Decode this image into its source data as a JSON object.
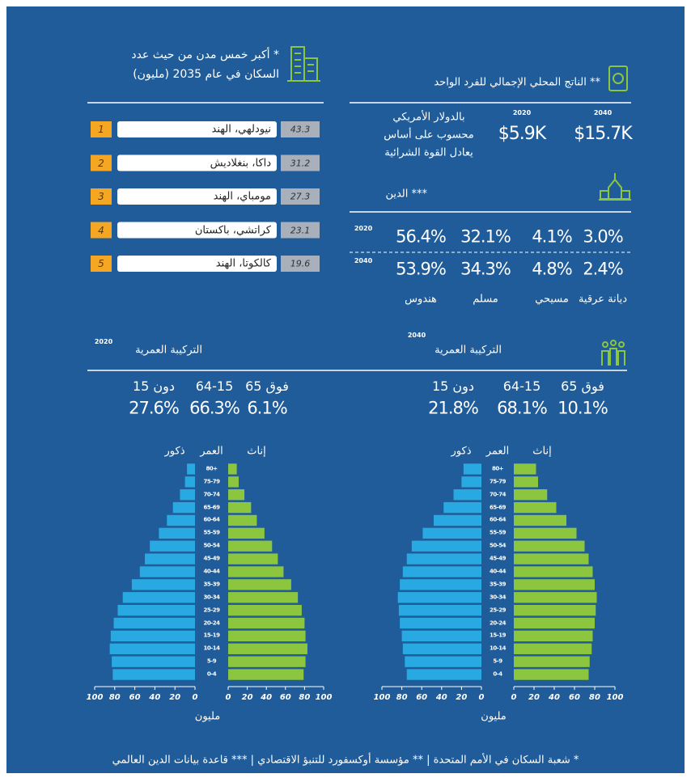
{
  "cities": {
    "title_lines": [
      "* أكبر خمس مدن من حيث عدد",
      "السكان في عام 2035 (مليون)"
    ],
    "rows": [
      {
        "rank": 1,
        "name": "نيودلهي، الهند",
        "value": 43.3
      },
      {
        "rank": 2,
        "name": "داكا، بنغلاديش",
        "value": 31.2
      },
      {
        "rank": 3,
        "name": "مومباي، الهند",
        "value": 27.3
      },
      {
        "rank": 4,
        "name": "كراتشي، باكستان",
        "value": 23.1
      },
      {
        "rank": 5,
        "name": "كالكوتا، الهند",
        "value": 19.6
      }
    ]
  },
  "gdp": {
    "title": "** الناتج المحلي الإجمالي للفرد الواحد",
    "note_lines": [
      "بالدولار الأمريكي",
      "محسوب على أساس",
      "يعادل القوة الشرائية"
    ],
    "years": [
      {
        "year": "2020",
        "value": "$5.9K"
      },
      {
        "year": "2040",
        "value": "$15.7K"
      }
    ]
  },
  "religion": {
    "title": "*** الدين",
    "labels": [
      "هندوس",
      "مسلم",
      "مسيحي",
      "ديانة عرقية"
    ],
    "rows": [
      {
        "year": "2020",
        "values": [
          "56.4%",
          "32.1%",
          "4.1%",
          "3.0%"
        ]
      },
      {
        "year": "2040",
        "values": [
          "53.9%",
          "34.3%",
          "4.8%",
          "2.4%"
        ]
      }
    ]
  },
  "age_composition": [
    {
      "year": "2020",
      "title": "التركيبة العمرية",
      "groups": [
        "15 دون",
        "64-15",
        "فوق 65"
      ],
      "values": [
        "27.6%",
        "66.3%",
        "6.1%"
      ]
    },
    {
      "year": "2040",
      "title": "التركيبة العمرية",
      "groups": [
        "15 دون",
        "64-15",
        "فوق 65"
      ],
      "values": [
        "21.8%",
        "68.1%",
        "10.1%"
      ]
    }
  ],
  "chart_data": [
    {
      "type": "pyramid",
      "categories": [
        "0-4",
        "5-9",
        "10-14",
        "15-19",
        "20-24",
        "25-29",
        "30-34",
        "35-39",
        "40-44",
        "45-49",
        "50-54",
        "55-59",
        "60-64",
        "65-69",
        "70-74",
        "75-79",
        "80+"
      ],
      "category_label": "العمر",
      "x_label": "مليون",
      "series": [
        {
          "name": "ذكور",
          "color": "#29a9e1",
          "values": [
            82,
            83,
            85,
            84,
            81,
            77,
            72,
            63,
            55,
            50,
            45,
            36,
            28,
            22,
            15,
            10,
            8
          ]
        },
        {
          "name": "إناث",
          "color": "#8cc63f",
          "values": [
            79,
            81,
            83,
            81,
            80,
            77,
            73,
            66,
            58,
            52,
            46,
            38,
            30,
            24,
            17,
            11,
            9
          ]
        }
      ],
      "xlim": [
        0,
        100
      ],
      "xticks": [
        0,
        20,
        40,
        60,
        80,
        100
      ]
    },
    {
      "type": "pyramid",
      "categories": [
        "0-4",
        "5-9",
        "10-14",
        "15-19",
        "20-24",
        "25-29",
        "30-34",
        "35-39",
        "40-44",
        "45-49",
        "50-54",
        "55-59",
        "60-64",
        "65-69",
        "70-74",
        "75-79",
        "80+"
      ],
      "category_label": "العمر",
      "x_label": "مليون",
      "series": [
        {
          "name": "ذكور",
          "color": "#29a9e1",
          "values": [
            75,
            77,
            79,
            80,
            82,
            83,
            84,
            82,
            79,
            75,
            70,
            59,
            48,
            38,
            28,
            20,
            18
          ]
        },
        {
          "name": "إناث",
          "color": "#8cc63f",
          "values": [
            74,
            75,
            77,
            78,
            80,
            81,
            82,
            80,
            78,
            74,
            70,
            62,
            52,
            42,
            33,
            24,
            22
          ]
        }
      ],
      "xlim": [
        0,
        100
      ],
      "xticks": [
        0,
        20,
        40,
        60,
        80,
        100
      ]
    }
  ],
  "footer": "* شعبة السكان في الأمم المتحدة | ** مؤسسة أوكسفورد للتنبؤ الاقتصادي | *** قاعدة بيانات الدين العالمي"
}
